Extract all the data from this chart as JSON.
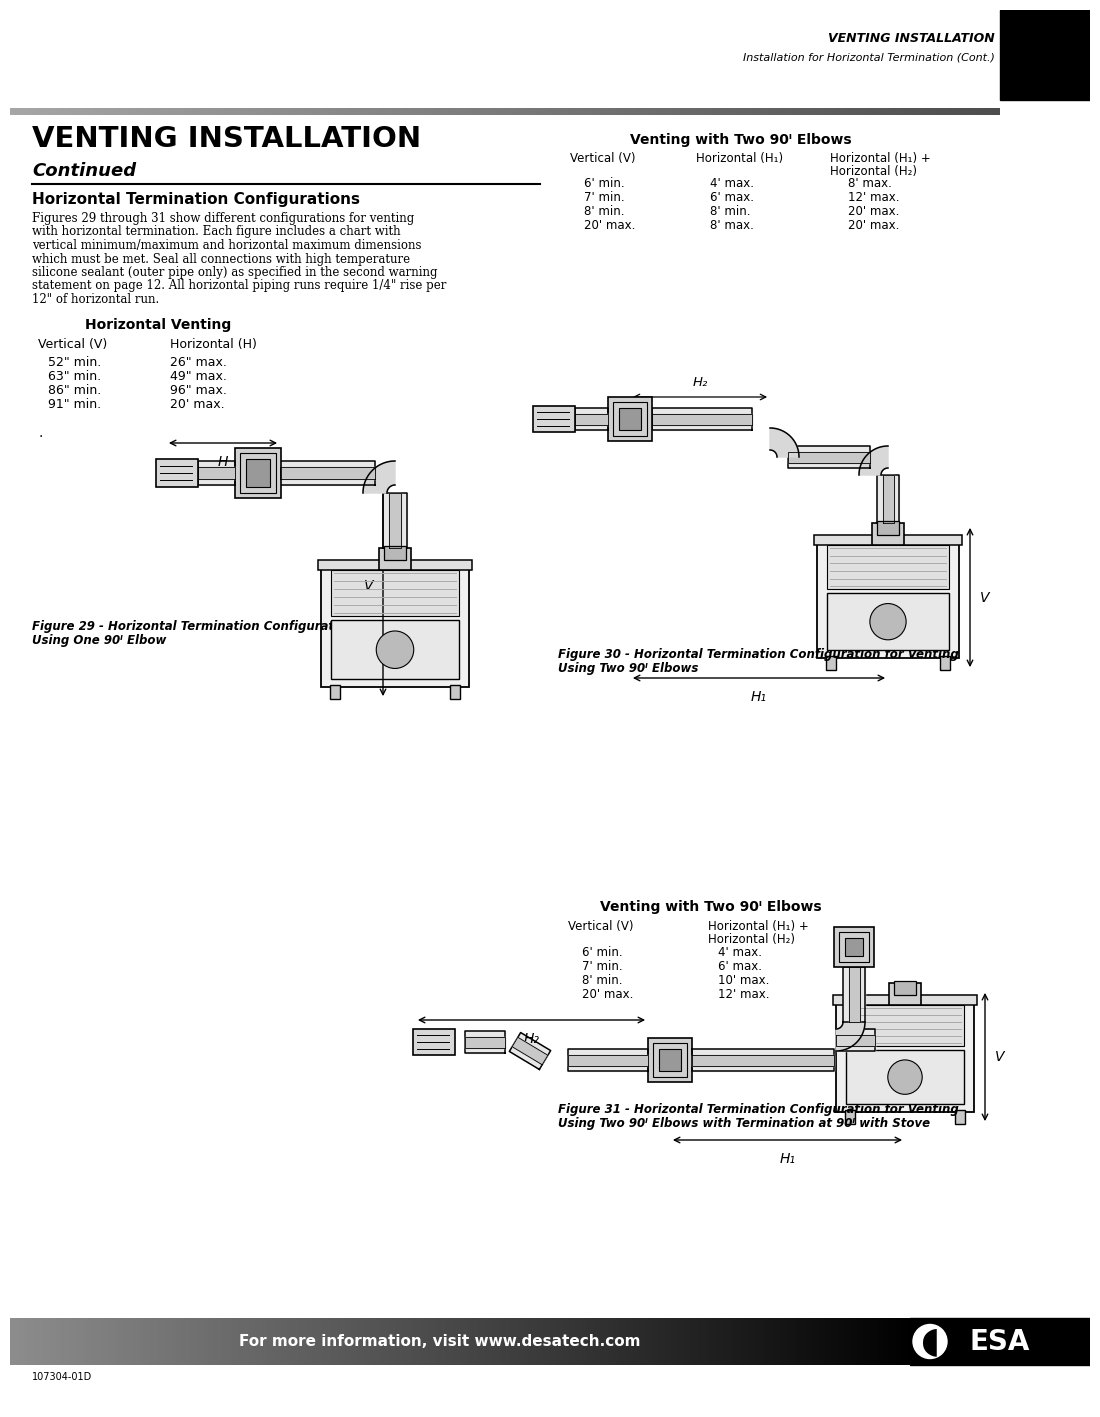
{
  "page_width": 10.8,
  "page_height": 13.97,
  "bg_color": "#ffffff",
  "header_title": "VENTING INSTALLATION",
  "header_subtitle": "Installation for Horizontal Termination (Cont.)",
  "main_title": "VENTING INSTALLATION",
  "main_subtitle": "Continued",
  "section_title": "Horizontal Termination Configurations",
  "body_lines": [
    "Figures 29 through 31 show different configurations for venting",
    "with horizontal termination. Each figure includes a chart with",
    "vertical minimum/maximum and horizontal maximum dimensions",
    "which must be met. Seal all connections with high temperature",
    "silicone sealant (outer pipe only) as specified in the second warning",
    "statement on page 12. All horizontal piping runs require 1/4\" rise per",
    "12\" of horizontal run."
  ],
  "horiz_venting_title": "Horizontal Venting",
  "horiz_col1": "Vertical (V)",
  "horiz_col2": "Horizontal (H)",
  "horiz_table_rows": [
    [
      "52\" min.",
      "26\" max."
    ],
    [
      "63\" min.",
      "49\" max."
    ],
    [
      "86\" min.",
      "96\" max."
    ],
    [
      "91\" min.",
      "20' max."
    ]
  ],
  "fig29_line1": "Figure 29 - Horizontal Termination Configuration for Venting",
  "fig29_line2": "Using One 90ᴵ Elbow",
  "two90_title": "Venting with Two 90ᴵ Elbows",
  "two90_col1": "Vertical (V)",
  "two90_col2": "Horizontal (H₁)",
  "two90_col3a": "Horizontal (H₁) +",
  "two90_col3b": "Horizontal (H₂)",
  "two90_table_rows": [
    [
      "6' min.",
      "4' max.",
      "8' max."
    ],
    [
      "7' min.",
      "6' max.",
      "12' max."
    ],
    [
      "8' min.",
      "8' min.",
      "20' max."
    ],
    [
      "20' max.",
      "8' max.",
      "20' max."
    ]
  ],
  "fig30_line1": "Figure 30 - Horizontal Termination Configuration for Venting",
  "fig30_line2": "Using Two 90ᴵ Elbows",
  "two90b_title": "Venting with Two 90ᴵ Elbows",
  "two90b_col1": "Vertical (V)",
  "two90b_col2a": "Horizontal (H₁) +",
  "two90b_col2b": "Horizontal (H₂)",
  "two90b_table_rows": [
    [
      "6' min.",
      "4' max."
    ],
    [
      "7' min.",
      "6' max."
    ],
    [
      "8' min.",
      "10' max."
    ],
    [
      "20' max.",
      "12' max."
    ]
  ],
  "fig31_line1": "Figure 31 - Horizontal Termination Configuration for Venting",
  "fig31_line2": "Using Two 90ᴵ Elbows with Termination at 90ᴵ with Stove",
  "footer_text": "For more information, visit www.desatech.com",
  "footer_doc": "107304-01D"
}
